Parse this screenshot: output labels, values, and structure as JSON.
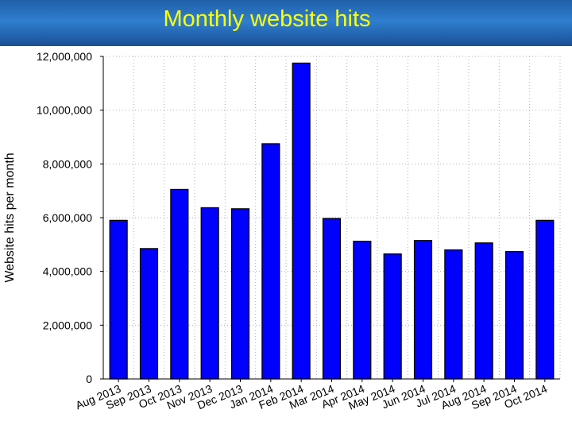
{
  "slide": {
    "title": "Monthly website hits"
  },
  "colors": {
    "bar": "#0000ff",
    "header": "#1f5fa8",
    "title_text": "#ffff00"
  },
  "chart_data": {
    "type": "bar",
    "title": "Monthly website hits",
    "xlabel": "",
    "ylabel": "Website hits per month",
    "ylim": [
      0,
      12000000
    ],
    "yticks": [
      0,
      2000000,
      4000000,
      6000000,
      8000000,
      10000000,
      12000000
    ],
    "ytick_labels": [
      "0",
      "2,000,000",
      "4,000,000",
      "6,000,000",
      "8,000,000",
      "10,000,000",
      "12,000,000"
    ],
    "grid": true,
    "categories": [
      "Aug 2013",
      "Sep 2013",
      "Oct 2013",
      "Nov 2013",
      "Dec 2013",
      "Jan 2014",
      "Feb 2014",
      "Mar 2014",
      "Apr 2014",
      "May 2014",
      "Jun 2014",
      "Jul 2014",
      "Aug 2014",
      "Sep 2014",
      "Oct 2014"
    ],
    "values": [
      5900000,
      4850000,
      7050000,
      6370000,
      6330000,
      8750000,
      11750000,
      5970000,
      5120000,
      4650000,
      5150000,
      4800000,
      5060000,
      4740000,
      5900000
    ]
  }
}
